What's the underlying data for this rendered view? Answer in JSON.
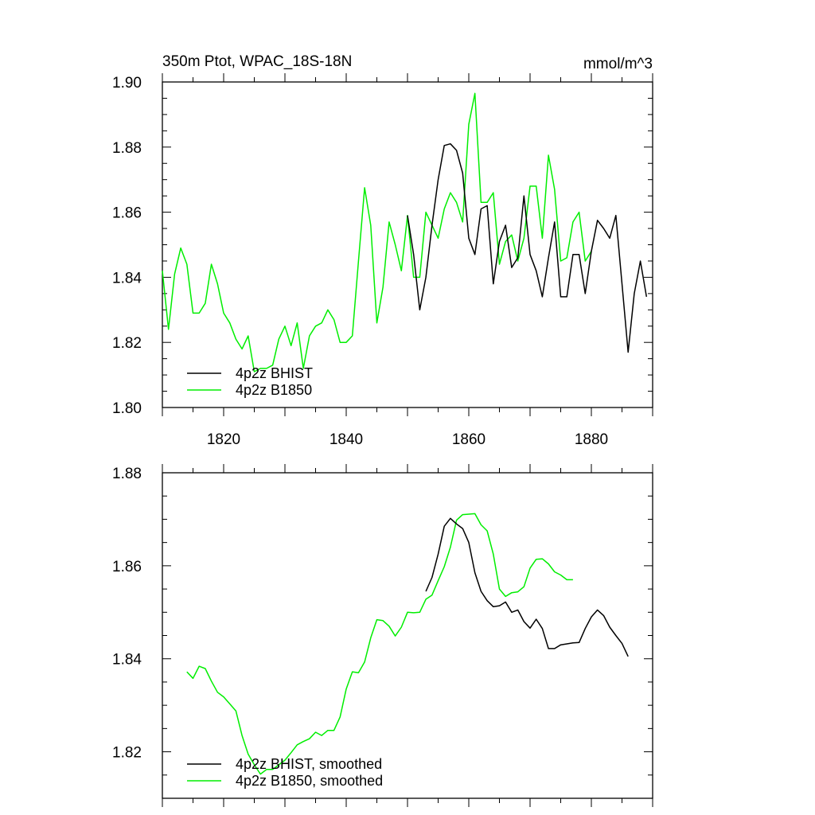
{
  "chart_data": [
    {
      "type": "line",
      "title": "350m Ptot, WPAC_18S-18N",
      "units": "mmol/m^3",
      "xlabel": "",
      "ylabel": "",
      "xlim": [
        1810,
        1890
      ],
      "ylim": [
        1.8,
        1.9
      ],
      "xticks": [
        1820,
        1840,
        1860,
        1880
      ],
      "xtick_labels": [
        "1820",
        "1840",
        "1860",
        "1880"
      ],
      "yticks": [
        1.8,
        1.82,
        1.84,
        1.86,
        1.88,
        1.9
      ],
      "ytick_labels": [
        "1.80",
        "1.82",
        "1.84",
        "1.86",
        "1.88",
        "1.90"
      ],
      "legend": {
        "placement": "bottom-left",
        "entries": [
          "4p2z BHIST",
          "4p2z B1850"
        ]
      },
      "series": [
        {
          "name": "4p2z BHIST",
          "color": "#000000",
          "x": [
            1850,
            1851,
            1852,
            1853,
            1854,
            1855,
            1856,
            1857,
            1858,
            1859,
            1860,
            1861,
            1862,
            1863,
            1864,
            1865,
            1866,
            1867,
            1868,
            1869,
            1870,
            1871,
            1872,
            1873,
            1874,
            1875,
            1876,
            1877,
            1878,
            1879,
            1880,
            1881,
            1882,
            1883,
            1884,
            1885,
            1886,
            1887,
            1888,
            1889
          ],
          "y": [
            1.859,
            1.847,
            1.83,
            1.84,
            1.856,
            1.87,
            1.8805,
            1.881,
            1.879,
            1.872,
            1.852,
            1.847,
            1.861,
            1.862,
            1.838,
            1.851,
            1.856,
            1.843,
            1.846,
            1.865,
            1.847,
            1.842,
            1.834,
            1.846,
            1.857,
            1.834,
            1.834,
            1.847,
            1.847,
            1.835,
            1.848,
            1.8575,
            1.855,
            1.852,
            1.859,
            1.838,
            1.817,
            1.835,
            1.845,
            1.834
          ]
        },
        {
          "name": "4p2z B1850",
          "color": "#00ee00",
          "x": [
            1810,
            1811,
            1812,
            1813,
            1814,
            1815,
            1816,
            1817,
            1818,
            1819,
            1820,
            1821,
            1822,
            1823,
            1824,
            1825,
            1826,
            1827,
            1828,
            1829,
            1830,
            1831,
            1832,
            1833,
            1834,
            1835,
            1836,
            1837,
            1838,
            1839,
            1840,
            1841,
            1842,
            1843,
            1844,
            1845,
            1846,
            1847,
            1848,
            1849,
            1850,
            1851,
            1852,
            1853,
            1854,
            1855,
            1856,
            1857,
            1858,
            1859,
            1860,
            1861,
            1862,
            1863,
            1864,
            1865,
            1866,
            1867,
            1868,
            1869,
            1870,
            1871,
            1872,
            1873,
            1874,
            1875,
            1876,
            1877,
            1878,
            1879,
            1880
          ],
          "y": [
            1.842,
            1.824,
            1.841,
            1.849,
            1.844,
            1.829,
            1.829,
            1.832,
            1.844,
            1.838,
            1.829,
            1.826,
            1.821,
            1.818,
            1.822,
            1.811,
            1.812,
            1.812,
            1.813,
            1.821,
            1.825,
            1.819,
            1.826,
            1.812,
            1.822,
            1.825,
            1.826,
            1.83,
            1.827,
            1.82,
            1.82,
            1.822,
            1.845,
            1.8675,
            1.856,
            1.826,
            1.837,
            1.857,
            1.85,
            1.842,
            1.859,
            1.84,
            1.84,
            1.86,
            1.856,
            1.852,
            1.861,
            1.866,
            1.863,
            1.857,
            1.887,
            1.8965,
            1.863,
            1.863,
            1.866,
            1.844,
            1.851,
            1.853,
            1.845,
            1.852,
            1.868,
            1.868,
            1.852,
            1.8775,
            1.867,
            1.845,
            1.846,
            1.857,
            1.86,
            1.845,
            1.848
          ]
        }
      ]
    },
    {
      "type": "line",
      "title": "",
      "xlabel": "",
      "ylabel": "",
      "xlim": [
        1810,
        1890
      ],
      "ylim": [
        1.81,
        1.88
      ],
      "yticks": [
        1.82,
        1.84,
        1.86,
        1.88
      ],
      "ytick_labels": [
        "1.82",
        "1.84",
        "1.86",
        "1.88"
      ],
      "legend": {
        "placement": "bottom-left",
        "entries": [
          "4p2z BHIST, smoothed",
          "4p2z B1850, smoothed"
        ]
      },
      "series": [
        {
          "name": "4p2z BHIST, smoothed",
          "color": "#000000",
          "x": [
            1853,
            1854,
            1855,
            1856,
            1857,
            1858,
            1859,
            1860,
            1861,
            1862,
            1863,
            1864,
            1865,
            1866,
            1867,
            1868,
            1869,
            1870,
            1871,
            1872,
            1873,
            1874,
            1875,
            1876,
            1877,
            1878,
            1879,
            1880,
            1881,
            1882,
            1883,
            1884,
            1885,
            1886
          ],
          "y": [
            1.8545,
            1.8575,
            1.8625,
            1.8685,
            1.8702,
            1.869,
            1.868,
            1.865,
            1.8585,
            1.8545,
            1.8525,
            1.8512,
            1.8514,
            1.8522,
            1.85,
            1.8505,
            1.848,
            1.8466,
            1.8485,
            1.8465,
            1.8422,
            1.8422,
            1.843,
            1.8432,
            1.8434,
            1.8435,
            1.8465,
            1.849,
            1.8505,
            1.8493,
            1.8468,
            1.845,
            1.8433,
            1.8405
          ]
        },
        {
          "name": "4p2z B1850, smoothed",
          "color": "#00ee00",
          "x": [
            1814,
            1815,
            1816,
            1817,
            1818,
            1819,
            1820,
            1821,
            1822,
            1823,
            1824,
            1825,
            1826,
            1827,
            1828,
            1829,
            1830,
            1831,
            1832,
            1833,
            1834,
            1835,
            1836,
            1837,
            1838,
            1839,
            1840,
            1841,
            1842,
            1843,
            1844,
            1845,
            1846,
            1847,
            1848,
            1849,
            1850,
            1851,
            1852,
            1853,
            1854,
            1855,
            1856,
            1857,
            1858,
            1859,
            1860,
            1861,
            1862,
            1863,
            1864,
            1865,
            1866,
            1867,
            1868,
            1869,
            1870,
            1871,
            1872,
            1873,
            1874,
            1875,
            1876,
            1877
          ],
          "y": [
            1.8372,
            1.8358,
            1.8384,
            1.8379,
            1.8352,
            1.8328,
            1.8318,
            1.8303,
            1.8288,
            1.8235,
            1.8195,
            1.8172,
            1.8152,
            1.8162,
            1.8162,
            1.8172,
            1.8182,
            1.8198,
            1.8215,
            1.8222,
            1.8228,
            1.8242,
            1.8235,
            1.8246,
            1.8246,
            1.8275,
            1.8335,
            1.8372,
            1.837,
            1.8393,
            1.8445,
            1.8484,
            1.8482,
            1.847,
            1.8449,
            1.8468,
            1.85,
            1.8499,
            1.85,
            1.8528,
            1.8537,
            1.8568,
            1.8598,
            1.864,
            1.8698,
            1.871,
            1.8711,
            1.8712,
            1.8688,
            1.8675,
            1.8625,
            1.855,
            1.8534,
            1.8542,
            1.8544,
            1.8555,
            1.8595,
            1.8614,
            1.8615,
            1.8604,
            1.8587,
            1.858,
            1.857,
            1.857
          ]
        }
      ]
    }
  ]
}
